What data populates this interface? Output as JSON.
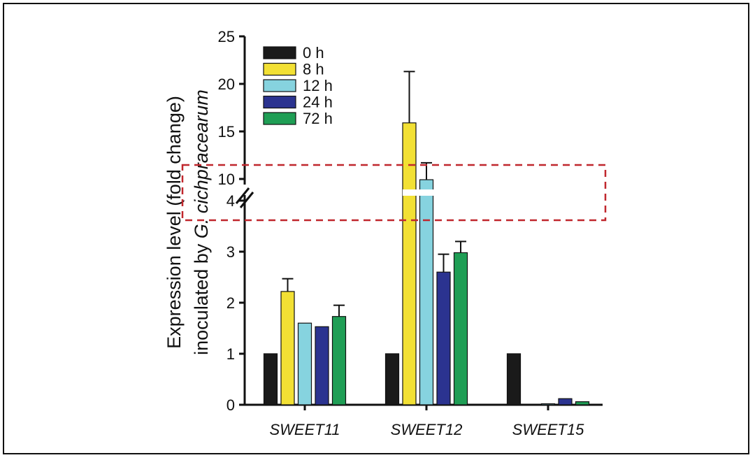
{
  "chart_data": {
    "type": "bar",
    "categories": [
      "SWEET11",
      "SWEET12",
      "SWEET15"
    ],
    "series": [
      {
        "name": "0 h",
        "color": "#1a1a1a",
        "values": [
          1.0,
          1.0,
          1.0
        ],
        "errors": [
          0,
          0,
          0
        ]
      },
      {
        "name": "8 h",
        "color": "#f2e034",
        "values": [
          2.22,
          15.9,
          0.0
        ],
        "errors": [
          0.25,
          5.4,
          0
        ]
      },
      {
        "name": "12 h",
        "color": "#86d3df",
        "values": [
          1.6,
          9.8,
          0.02
        ],
        "errors": [
          0,
          1.9,
          0
        ]
      },
      {
        "name": "24 h",
        "color": "#2b3390",
        "values": [
          1.53,
          2.6,
          0.12
        ],
        "errors": [
          0,
          0.35,
          0
        ]
      },
      {
        "name": "72 h",
        "color": "#1f9e55",
        "values": [
          1.73,
          2.98,
          0.06
        ],
        "errors": [
          0.22,
          0.22,
          0
        ]
      }
    ],
    "ylabel_line1": "Expression level (fold change)",
    "ylabel_line2_prefix": "inoculated by ",
    "ylabel_line2_italic": "G. cichpracearum",
    "axis_break": {
      "lower_max": 4,
      "upper_min": 10
    },
    "lower_ticks": [
      0,
      1,
      2,
      3,
      4
    ],
    "upper_ticks": [
      10,
      15,
      20,
      25
    ],
    "ylim": [
      0,
      25
    ],
    "legend_position": "top-left",
    "highlight_box": {
      "style": "dashed",
      "color": "#c0272d"
    }
  }
}
